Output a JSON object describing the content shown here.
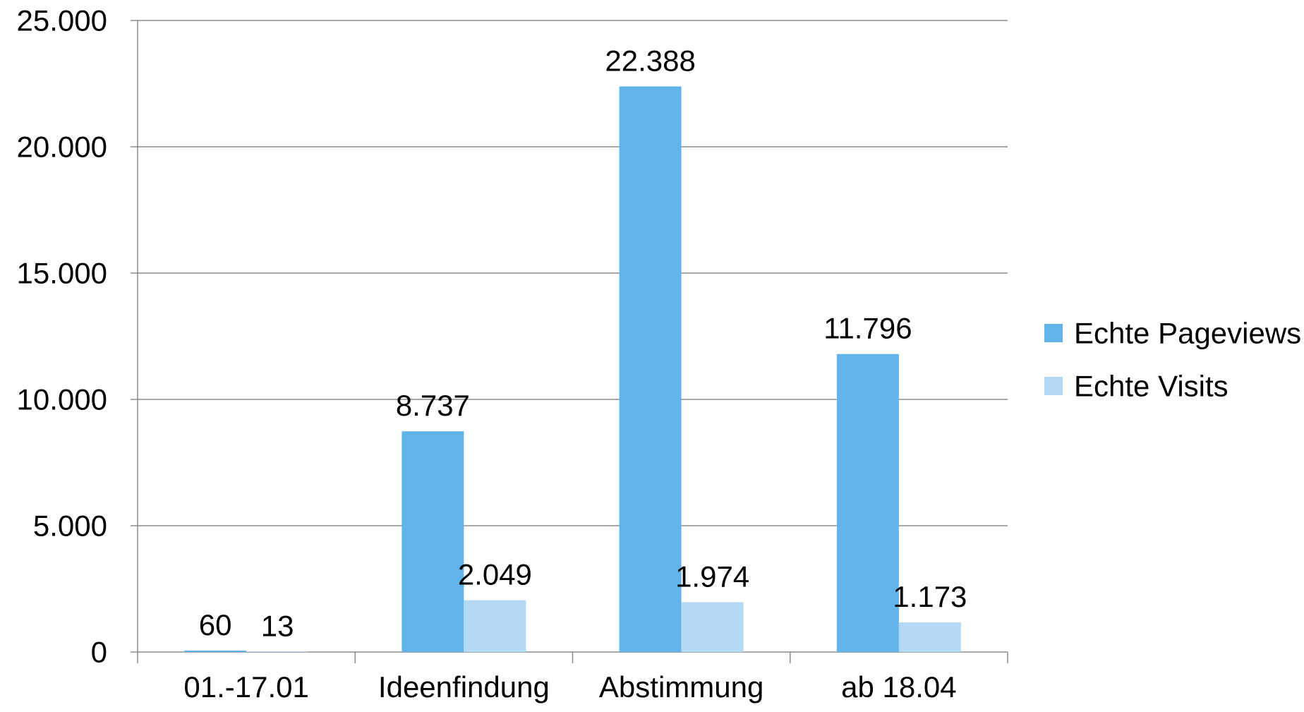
{
  "chart_data": {
    "type": "bar",
    "title": "",
    "xlabel": "",
    "ylabel": "",
    "categories": [
      "01.-17.01",
      "Ideenfindung",
      "Abstimmung",
      "ab 18.04"
    ],
    "series": [
      {
        "name": "Echte Pageviews",
        "color": "#63b3eb",
        "values": [
          60,
          8737,
          22388,
          11796
        ],
        "labels": [
          "60",
          "8.737",
          "22.388",
          "11.796"
        ]
      },
      {
        "name": "Echte Visits",
        "color": "#b3d9f5",
        "values": [
          13,
          2049,
          1974,
          1173
        ],
        "labels": [
          "13",
          "2.049",
          "1.974",
          "1.173"
        ]
      }
    ],
    "ylim": [
      0,
      25000
    ],
    "yticks": [
      0,
      5000,
      10000,
      15000,
      20000,
      25000
    ],
    "ytick_labels": [
      "0",
      "5.000",
      "10.000",
      "15.000",
      "20.000",
      "25.000"
    ],
    "grid": true,
    "legend_position": "right"
  }
}
